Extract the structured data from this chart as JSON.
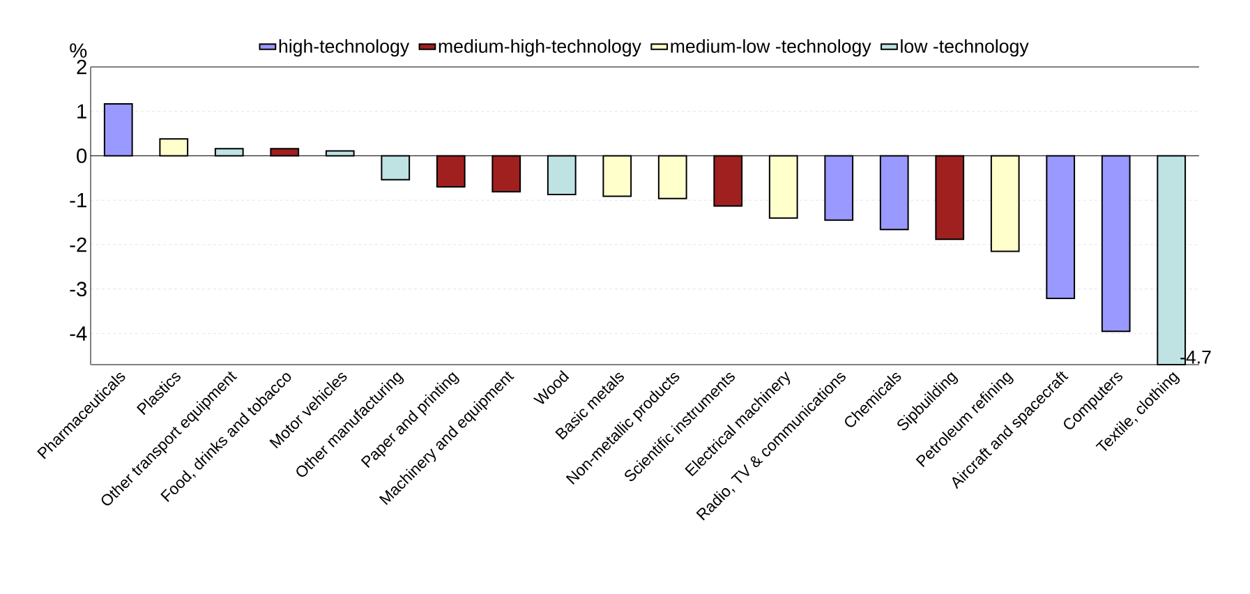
{
  "chart_data": {
    "type": "bar",
    "ylabel": "%",
    "categories": [
      "Pharmaceuticals",
      "Plastics",
      "Other transport equipment",
      "Food, drinks and tobacco",
      "Motor vehicles",
      "Other manufacturing",
      "Paper and printing",
      "Machinery and equipment",
      "Wood",
      "Basic metals",
      "Non-metallic products",
      "Scientific instruments",
      "Electrical machinery",
      "Radio, TV & communications",
      "Chemicals",
      "Sipbuilding",
      "Petroleum refining",
      "Aircraft and spacecraft",
      "Computers",
      "Textile, clothing"
    ],
    "series": [
      {
        "name": "high-technology",
        "color": "#9999ff",
        "values": [
          1.17,
          null,
          null,
          null,
          null,
          null,
          null,
          null,
          null,
          null,
          null,
          null,
          null,
          -1.45,
          -1.66,
          null,
          null,
          -3.21,
          -3.95,
          null
        ]
      },
      {
        "name": "medium-high-technology",
        "color": "#a02020",
        "values": [
          null,
          null,
          null,
          0.16,
          null,
          null,
          -0.7,
          -0.81,
          null,
          null,
          null,
          -1.13,
          null,
          null,
          null,
          -1.88,
          null,
          null,
          null,
          null
        ]
      },
      {
        "name": "medium-low -technology",
        "color": "#ffffcc",
        "values": [
          null,
          0.38,
          null,
          null,
          null,
          null,
          null,
          null,
          null,
          -0.91,
          -0.96,
          null,
          -1.4,
          null,
          null,
          null,
          -2.15,
          null,
          null,
          null
        ]
      },
      {
        "name": "low -technology",
        "color": "#bfe3e3",
        "values": [
          null,
          null,
          0.16,
          null,
          0.11,
          -0.54,
          null,
          null,
          -0.87,
          null,
          null,
          null,
          null,
          null,
          null,
          null,
          null,
          null,
          null,
          -4.7
        ],
        "value_labels": [
          null,
          null,
          null,
          null,
          null,
          null,
          null,
          null,
          null,
          null,
          null,
          null,
          null,
          null,
          null,
          null,
          null,
          null,
          null,
          "-4.7"
        ]
      }
    ],
    "ylim": [
      -4.7,
      2
    ],
    "yticks": [
      -4,
      -3,
      -2,
      -1,
      0,
      1,
      2
    ],
    "grid": "y",
    "legend": "top"
  }
}
